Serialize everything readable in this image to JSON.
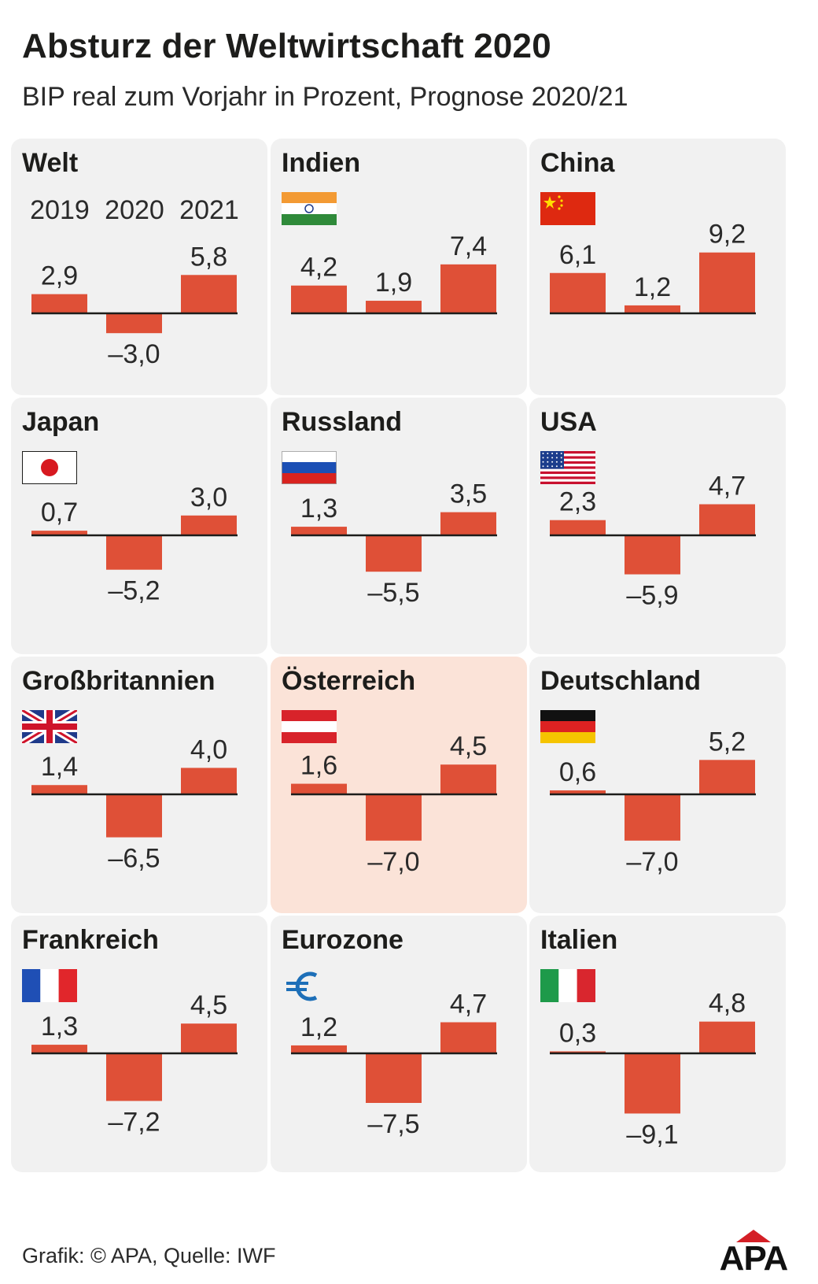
{
  "title": "Absturz der Weltwirtschaft 2020",
  "subtitle": "BIP real zum Vorjahr in Prozent, Prognose 2020/21",
  "footer": "Grafik: © APA, Quelle: IWF",
  "logo": "APA",
  "colors": {
    "bar": "#df5037",
    "panel_background": "#f1f1f1",
    "highlight_background": "#fbe3d8"
  },
  "chart_data": [
    {
      "type": "bar",
      "title": "Welt",
      "flag": "globe-none",
      "categories": [
        "2019",
        "2020",
        "2021"
      ],
      "values": [
        2.9,
        -3.0,
        5.8
      ],
      "labels": [
        "2,9",
        "–3,0",
        "5,8"
      ]
    },
    {
      "type": "bar",
      "title": "Indien",
      "flag": "india-flag-icon",
      "categories": [
        "2019",
        "2020",
        "2021"
      ],
      "values": [
        4.2,
        1.9,
        7.4
      ],
      "labels": [
        "4,2",
        "1,9",
        "7,4"
      ]
    },
    {
      "type": "bar",
      "title": "China",
      "flag": "china-flag-icon",
      "categories": [
        "2019",
        "2020",
        "2021"
      ],
      "values": [
        6.1,
        1.2,
        9.2
      ],
      "labels": [
        "6,1",
        "1,2",
        "9,2"
      ]
    },
    {
      "type": "bar",
      "title": "Japan",
      "flag": "japan-flag-icon",
      "categories": [
        "2019",
        "2020",
        "2021"
      ],
      "values": [
        0.7,
        -5.2,
        3.0
      ],
      "labels": [
        "0,7",
        "–5,2",
        "3,0"
      ]
    },
    {
      "type": "bar",
      "title": "Russland",
      "flag": "russia-flag-icon",
      "categories": [
        "2019",
        "2020",
        "2021"
      ],
      "values": [
        1.3,
        -5.5,
        3.5
      ],
      "labels": [
        "1,3",
        "–5,5",
        "3,5"
      ]
    },
    {
      "type": "bar",
      "title": "USA",
      "flag": "usa-flag-icon",
      "categories": [
        "2019",
        "2020",
        "2021"
      ],
      "values": [
        2.3,
        -5.9,
        4.7
      ],
      "labels": [
        "2,3",
        "–5,9",
        "4,7"
      ]
    },
    {
      "type": "bar",
      "title": "Großbritannien",
      "flag": "uk-flag-icon",
      "categories": [
        "2019",
        "2020",
        "2021"
      ],
      "values": [
        1.4,
        -6.5,
        4.0
      ],
      "labels": [
        "1,4",
        "–6,5",
        "4,0"
      ]
    },
    {
      "type": "bar",
      "title": "Österreich",
      "flag": "austria-flag-icon",
      "highlighted": true,
      "categories": [
        "2019",
        "2020",
        "2021"
      ],
      "values": [
        1.6,
        -7.0,
        4.5
      ],
      "labels": [
        "1,6",
        "–7,0",
        "4,5"
      ]
    },
    {
      "type": "bar",
      "title": "Deutschland",
      "flag": "germany-flag-icon",
      "categories": [
        "2019",
        "2020",
        "2021"
      ],
      "values": [
        0.6,
        -7.0,
        5.2
      ],
      "labels": [
        "0,6",
        "–7,0",
        "5,2"
      ]
    },
    {
      "type": "bar",
      "title": "Frankreich",
      "flag": "france-flag-icon",
      "categories": [
        "2019",
        "2020",
        "2021"
      ],
      "values": [
        1.3,
        -7.2,
        4.5
      ],
      "labels": [
        "1,3",
        "–7,2",
        "4,5"
      ]
    },
    {
      "type": "bar",
      "title": "Eurozone",
      "flag": "euro-icon",
      "categories": [
        "2019",
        "2020",
        "2021"
      ],
      "values": [
        1.2,
        -7.5,
        4.7
      ],
      "labels": [
        "1,2",
        "–7,5",
        "4,7"
      ]
    },
    {
      "type": "bar",
      "title": "Italien",
      "flag": "italy-flag-icon",
      "categories": [
        "2019",
        "2020",
        "2021"
      ],
      "values": [
        0.3,
        -9.1,
        4.8
      ],
      "labels": [
        "0,3",
        "–9,1",
        "4,8"
      ]
    }
  ]
}
